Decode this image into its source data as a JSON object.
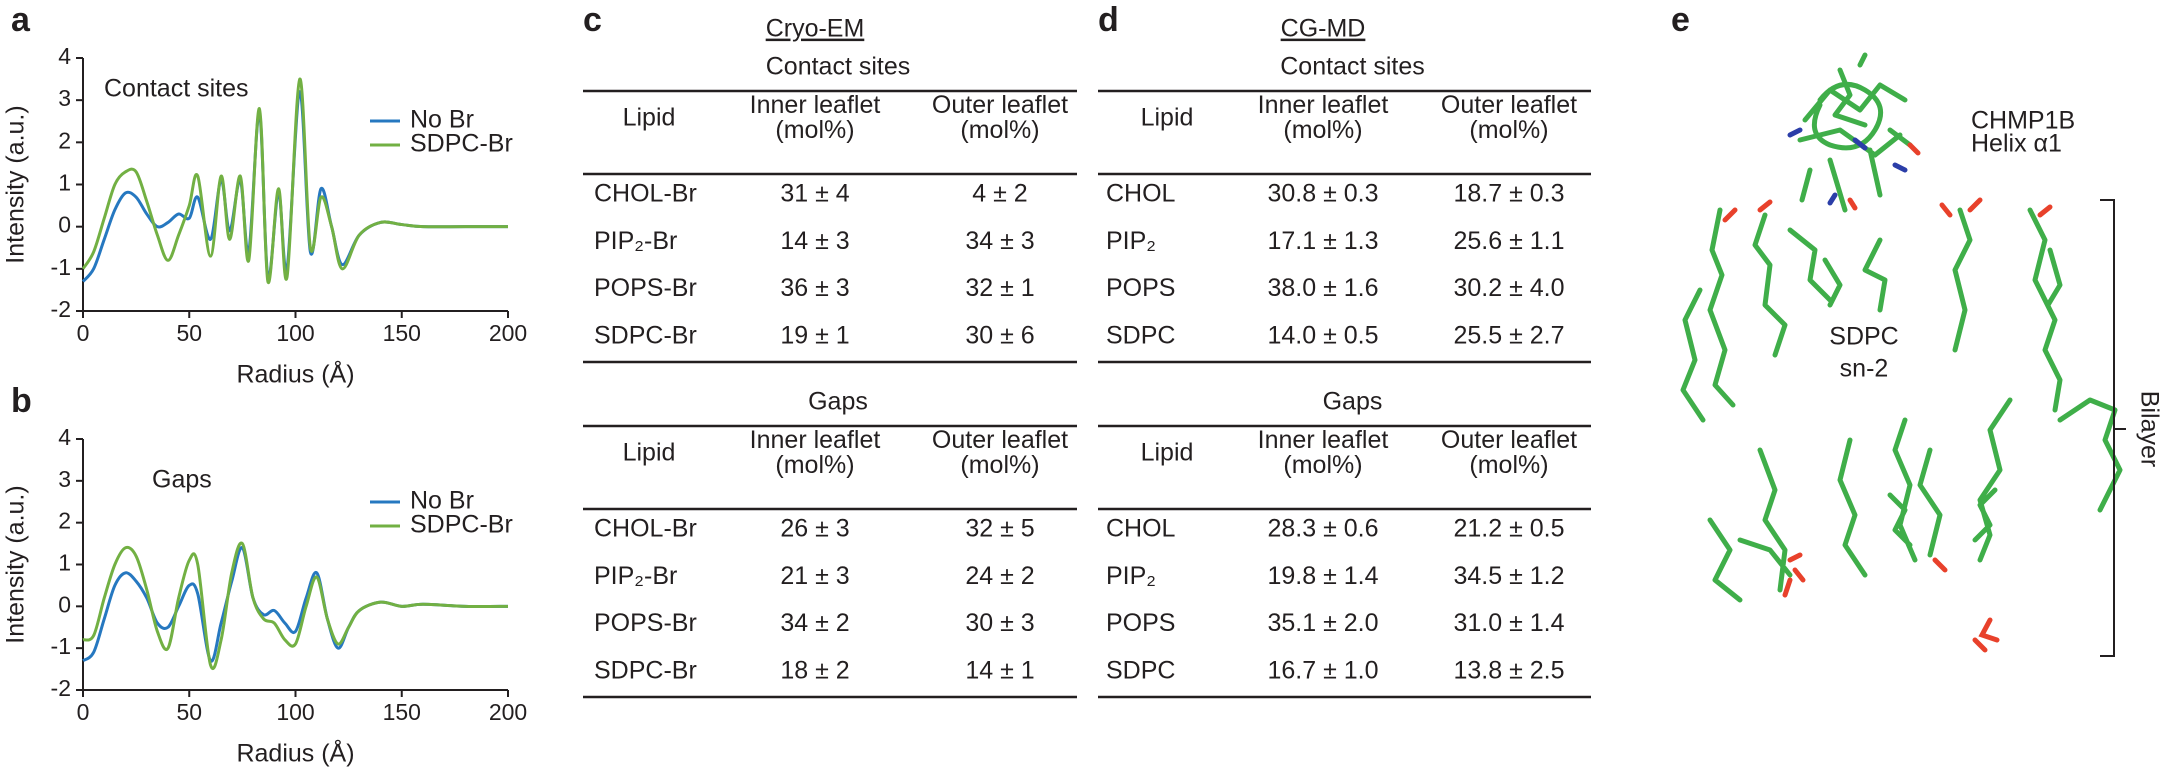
{
  "chart_data": [
    {
      "type": "line",
      "panel": "a",
      "annotation": "Contact sites",
      "xlabel": "Radius (Å)",
      "ylabel": "Intensity (a.u.)",
      "x": [
        0,
        5,
        10,
        15,
        20,
        25,
        30,
        35,
        40,
        45,
        50,
        54,
        60,
        65,
        69,
        74,
        78,
        83,
        87,
        92,
        96,
        102,
        107,
        112,
        117,
        122,
        130,
        140,
        150,
        160,
        180,
        200
      ],
      "series": [
        {
          "name": "No Br",
          "color": "#2678c0",
          "values": [
            -1.3,
            -1.0,
            -0.3,
            0.4,
            0.8,
            0.7,
            0.3,
            0.0,
            0.1,
            0.3,
            0.2,
            0.7,
            -0.3,
            1.1,
            -0.1,
            1.1,
            -0.6,
            2.7,
            -1.2,
            0.8,
            -1.0,
            3.2,
            -0.6,
            0.9,
            0.0,
            -0.9,
            -0.2,
            0.1,
            0.05,
            0,
            0,
            0
          ]
        },
        {
          "name": "SDPC-Br",
          "color": "#72b043",
          "values": [
            -1.0,
            -0.6,
            0.2,
            1.0,
            1.3,
            1.3,
            0.6,
            -0.2,
            -0.8,
            -0.2,
            0.5,
            1.2,
            -0.7,
            1.2,
            -0.3,
            1.2,
            -0.8,
            2.8,
            -1.3,
            0.9,
            -1.2,
            3.5,
            -0.5,
            0.7,
            0.0,
            -1.0,
            -0.2,
            0.1,
            0.05,
            0,
            0,
            0
          ]
        }
      ],
      "xlim": [
        0,
        200
      ],
      "xticks": [
        0,
        50,
        100,
        150,
        200
      ],
      "ylim": [
        -2,
        4
      ],
      "yticks": [
        -2,
        -1,
        0,
        1,
        2,
        3,
        4
      ],
      "legend": "upper right"
    },
    {
      "type": "line",
      "panel": "b",
      "annotation": "Gaps",
      "xlabel": "Radius (Å)",
      "ylabel": "Intensity (a.u.)",
      "x": [
        0,
        5,
        10,
        15,
        20,
        25,
        30,
        35,
        40,
        45,
        50,
        54,
        60,
        65,
        70,
        75,
        80,
        85,
        90,
        95,
        100,
        105,
        110,
        115,
        120,
        125,
        130,
        140,
        150,
        160,
        180,
        200
      ],
      "series": [
        {
          "name": "No Br",
          "color": "#2678c0",
          "values": [
            -1.3,
            -1.1,
            -0.3,
            0.5,
            0.8,
            0.6,
            0.2,
            -0.4,
            -0.5,
            0,
            0.5,
            0.3,
            -1.3,
            -0.4,
            0.6,
            1.4,
            0.2,
            -0.2,
            -0.1,
            -0.4,
            -0.6,
            0.2,
            0.8,
            -0.3,
            -1.0,
            -0.5,
            -0.1,
            0.1,
            0,
            0.05,
            0,
            0
          ]
        },
        {
          "name": "SDPC-Br",
          "color": "#72b043",
          "values": [
            -0.8,
            -0.7,
            0.2,
            1.0,
            1.4,
            1.2,
            0.4,
            -0.6,
            -1.0,
            0.2,
            1.1,
            1.0,
            -1.4,
            -0.8,
            0.8,
            1.5,
            0.2,
            -0.3,
            -0.4,
            -0.8,
            -0.9,
            0.0,
            0.7,
            -0.3,
            -0.9,
            -0.5,
            -0.1,
            0.1,
            0,
            0.05,
            0,
            0
          ]
        }
      ],
      "xlim": [
        0,
        200
      ],
      "xticks": [
        0,
        50,
        100,
        150,
        200
      ],
      "ylim": [
        -2,
        4
      ],
      "yticks": [
        -2,
        -1,
        0,
        1,
        2,
        3,
        4
      ],
      "legend": "upper right"
    }
  ],
  "tables": [
    {
      "panel": "c",
      "method": "Cryo-EM",
      "sections": [
        {
          "title": "Contact sites",
          "header": [
            [
              "Lipid"
            ],
            [
              "Inner leaflet",
              "(mol%)"
            ],
            [
              "Outer leaflet",
              "(mol%)"
            ]
          ],
          "rows": [
            [
              "CHOL-Br",
              "31 ± 4",
              "4 ± 2"
            ],
            [
              "PIP₂-Br",
              "14 ± 3",
              "34 ± 3"
            ],
            [
              "POPS-Br",
              "36 ± 3",
              "32 ± 1"
            ],
            [
              "SDPC-Br",
              "19 ± 1",
              "30 ± 6"
            ]
          ]
        },
        {
          "title": "Gaps",
          "header": [
            [
              "Lipid"
            ],
            [
              "Inner leaflet",
              "(mol%)"
            ],
            [
              "Outer leaflet",
              "(mol%)"
            ]
          ],
          "rows": [
            [
              "CHOL-Br",
              "26 ± 3",
              "32 ± 5"
            ],
            [
              "PIP₂-Br",
              "21 ± 3",
              "24 ± 2"
            ],
            [
              "POPS-Br",
              "34 ± 2",
              "30 ± 3"
            ],
            [
              "SDPC-Br",
              "18 ± 2",
              "14 ± 1"
            ]
          ]
        }
      ]
    },
    {
      "panel": "d",
      "method": "CG-MD",
      "sections": [
        {
          "title": "Contact sites",
          "header": [
            [
              "Lipid"
            ],
            [
              "Inner leaflet",
              "(mol%)"
            ],
            [
              "Outer leaflet",
              "(mol%)"
            ]
          ],
          "rows": [
            [
              "CHOL",
              "30.8 ± 0.3",
              "18.7 ± 0.3"
            ],
            [
              "PIP₂",
              "17.1 ± 1.3",
              "25.6 ± 1.1"
            ],
            [
              "POPS",
              "38.0 ± 1.6",
              "30.2 ± 4.0"
            ],
            [
              "SDPC",
              "14.0 ± 0.5",
              "25.5 ± 2.7"
            ]
          ]
        },
        {
          "title": "Gaps",
          "header": [
            [
              "Lipid"
            ],
            [
              "Inner leaflet",
              "(mol%)"
            ],
            [
              "Outer leaflet",
              "(mol%)"
            ]
          ],
          "rows": [
            [
              "CHOL",
              "28.3 ± 0.6",
              "21.2 ± 0.5"
            ],
            [
              "PIP₂",
              "19.8 ± 1.4",
              "34.5 ± 1.2"
            ],
            [
              "POPS",
              "35.1 ± 2.0",
              "31.0 ± 1.4"
            ],
            [
              "SDPC",
              "16.7 ± 1.0",
              "13.8 ± 2.5"
            ]
          ]
        }
      ]
    }
  ],
  "panel_e": {
    "panel": "e",
    "helix_label": [
      "CHMP1B",
      "Helix α1"
    ],
    "sdpc_label": [
      "SDPC",
      "sn-2"
    ],
    "bilayer_label": "Bilayer"
  }
}
